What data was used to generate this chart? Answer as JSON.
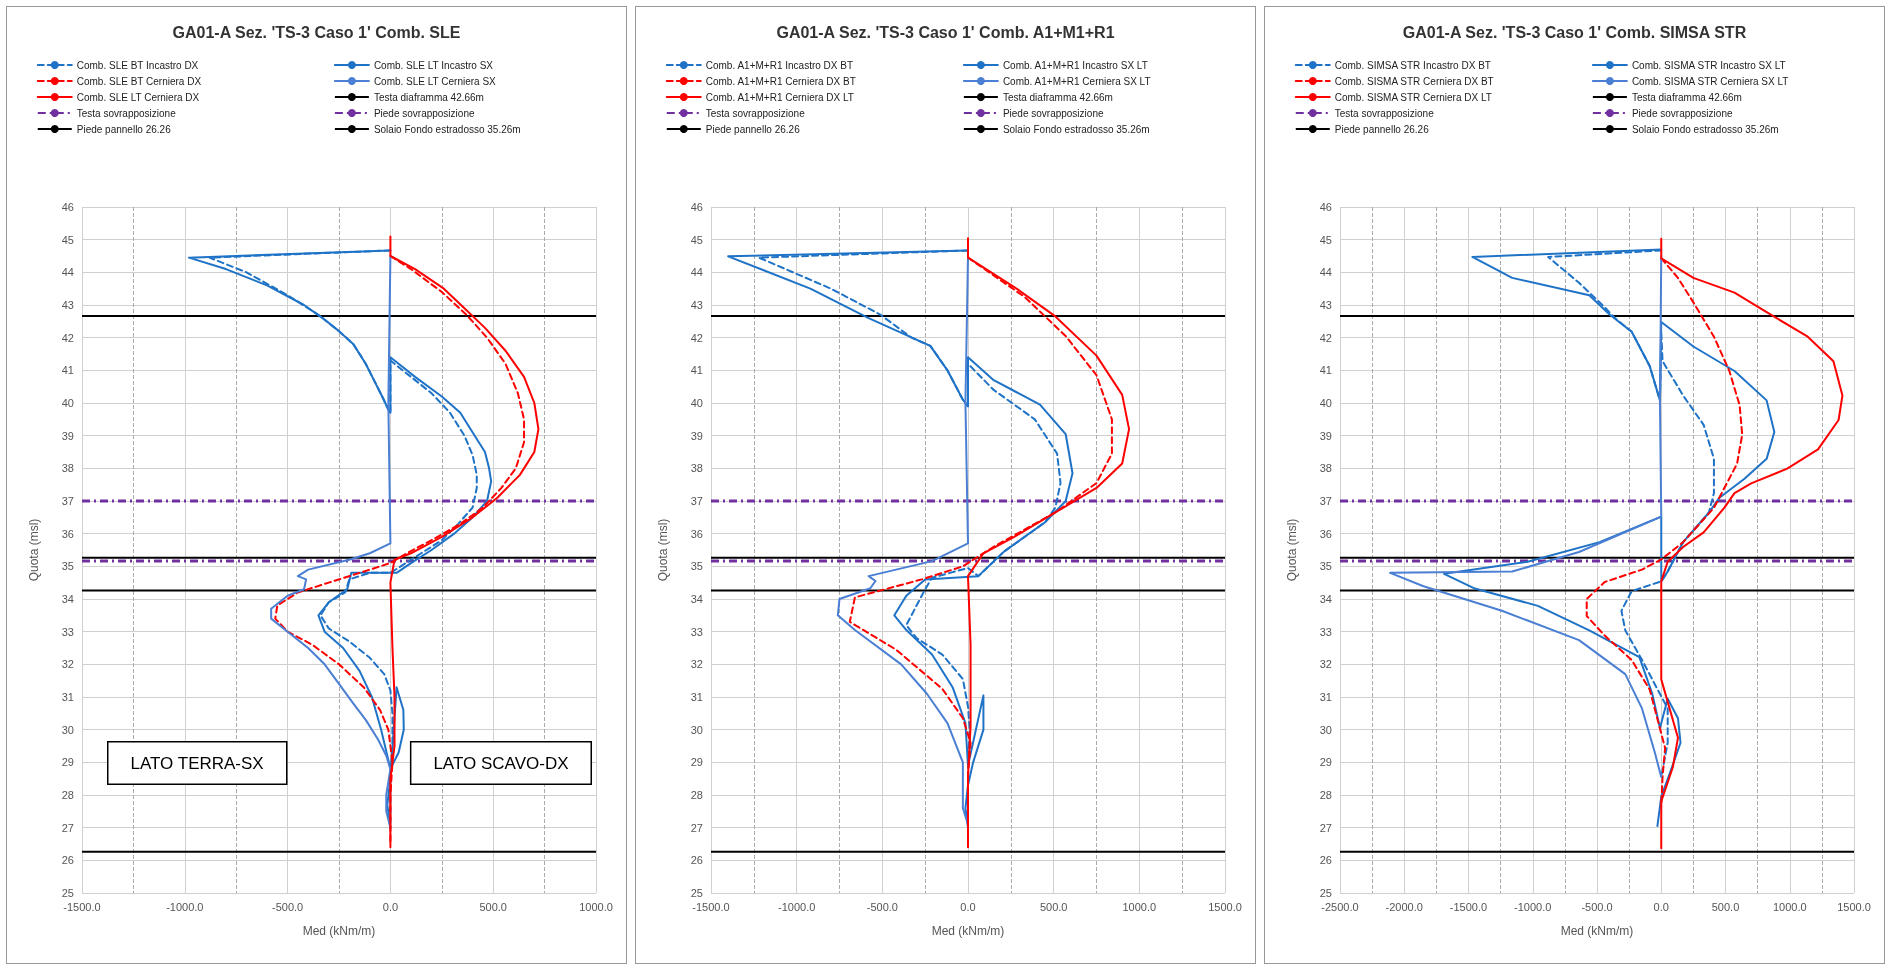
{
  "chart_data": [
    {
      "type": "line",
      "title": "GA01-A Sez. 'TS-3 Caso 1' Comb. SLE",
      "xlabel": "Med (kNm/m)",
      "ylabel": "Quota (msl)",
      "legend": "top",
      "grid": true,
      "marker": "none",
      "xlim": [
        -1500,
        1000
      ],
      "xticks": [
        {
          "value": -1500,
          "label": "-1500.0"
        },
        {
          "value": -1000,
          "label": "-1000.0"
        },
        {
          "value": -500,
          "label": "-500.0"
        },
        {
          "value": 0,
          "label": "0.0"
        },
        {
          "value": 500,
          "label": "500.0"
        },
        {
          "value": 1000,
          "label": "1000.0"
        }
      ],
      "ylim": [
        25,
        46
      ],
      "yticks": [
        25,
        26,
        27,
        28,
        29,
        30,
        31,
        32,
        33,
        34,
        35,
        36,
        37,
        38,
        39,
        40,
        41,
        42,
        43,
        44,
        45,
        46
      ],
      "series": [
        {
          "name": "Comb. SLE BT Incastro DX",
          "color": "#1f73c7",
          "line_style": "dashed",
          "x": [
            0,
            -880,
            -700,
            -500,
            -350,
            -250,
            -180,
            -120,
            -80,
            -40,
            -10,
            0,
            0,
            20,
            100,
            200,
            290,
            360,
            400,
            420,
            420,
            400,
            330,
            250,
            150,
            50,
            0,
            -100,
            -200,
            -220,
            -300,
            -340,
            -300,
            -200,
            -100,
            -30,
            0,
            10,
            10,
            0,
            0
          ],
          "values": [
            44.67,
            44.45,
            44.0,
            43.3,
            42.7,
            42.2,
            41.8,
            41.2,
            40.7,
            40.2,
            39.8,
            39.7,
            41.3,
            41.2,
            40.8,
            40.3,
            39.7,
            39.0,
            38.4,
            37.8,
            37.4,
            36.8,
            36.3,
            35.8,
            35.4,
            35.0,
            34.8,
            34.8,
            34.6,
            34.2,
            33.9,
            33.5,
            33.1,
            32.7,
            32.2,
            31.7,
            31.2,
            30.5,
            29.5,
            28.5,
            27.0
          ]
        },
        {
          "name": "Comb. SLE LT Incastro SX",
          "color": "#1f73c7",
          "line_style": "solid",
          "x": [
            0,
            -980,
            -800,
            -600,
            -420,
            -330,
            -250,
            -180,
            -120,
            -80,
            -40,
            -10,
            0,
            0,
            20,
            120,
            250,
            340,
            410,
            460,
            480,
            490,
            470,
            400,
            310,
            200,
            100,
            30,
            -190,
            -210,
            -300,
            -350,
            -320,
            -230,
            -150,
            -90,
            -45,
            -15,
            0,
            40,
            65,
            63,
            30,
            0,
            -15,
            0
          ],
          "values": [
            44.67,
            44.45,
            44.1,
            43.6,
            43.0,
            42.6,
            42.2,
            41.8,
            41.2,
            40.7,
            40.2,
            39.8,
            39.7,
            41.4,
            41.3,
            40.8,
            40.2,
            39.7,
            39.0,
            38.5,
            38.0,
            37.6,
            37.0,
            36.5,
            36.0,
            35.5,
            35.1,
            34.8,
            34.8,
            34.3,
            33.9,
            33.5,
            33.0,
            32.5,
            31.8,
            31.0,
            30.0,
            29.2,
            28.8,
            29.3,
            30.0,
            30.6,
            31.3,
            28.5,
            27.7,
            27.0
          ]
        },
        {
          "name": "Comb. SLE BT Cerniera DX",
          "color": "#ff0000",
          "line_style": "dashed",
          "x": [
            0,
            100,
            250,
            370,
            470,
            560,
            620,
            650,
            650,
            610,
            540,
            450,
            340,
            200,
            80,
            0,
            -150,
            -300,
            -450,
            -550,
            -560,
            -500,
            -380,
            -250,
            -130,
            -50,
            -10,
            10,
            0,
            0
          ],
          "values": [
            44.5,
            44.1,
            43.4,
            42.7,
            42.0,
            41.2,
            40.3,
            39.5,
            38.8,
            38.0,
            37.4,
            36.8,
            36.3,
            35.8,
            35.4,
            35.1,
            34.8,
            34.5,
            34.2,
            33.8,
            33.4,
            33.0,
            32.6,
            32.0,
            31.3,
            30.6,
            30.0,
            29.0,
            28.0,
            26.5
          ]
        },
        {
          "name": "Comb. SLE LT Cerniera SX",
          "color": "#4a7fd4",
          "line_style": "solid",
          "x": [
            0,
            -10,
            0,
            -100,
            -200,
            -400,
            -450,
            -410,
            -420,
            -500,
            -580,
            -580,
            -500,
            -400,
            -320,
            -250,
            -180,
            -120,
            -60,
            -20,
            0,
            -20,
            -20,
            0
          ],
          "values": [
            44.5,
            40.0,
            35.7,
            35.4,
            35.2,
            34.9,
            34.7,
            34.6,
            34.3,
            34.1,
            33.7,
            33.4,
            33.0,
            32.5,
            32.0,
            31.4,
            30.8,
            30.3,
            29.7,
            29.2,
            28.8,
            28.0,
            27.5,
            27.0
          ]
        },
        {
          "name": "Comb. SLE LT Cerniera DX",
          "color": "#ff0000",
          "line_style": "solid",
          "x": [
            0,
            0,
            120,
            260,
            360,
            460,
            560,
            650,
            700,
            720,
            700,
            630,
            520,
            400,
            250,
            100,
            20,
            0,
            10,
            20,
            20,
            0,
            0
          ],
          "values": [
            45.1,
            44.5,
            44.1,
            43.5,
            42.9,
            42.3,
            41.6,
            40.8,
            40.0,
            39.2,
            38.5,
            37.8,
            37.1,
            36.5,
            35.9,
            35.4,
            35.2,
            34.5,
            32.5,
            31.0,
            29.5,
            28.5,
            26.4
          ]
        }
      ],
      "ref_lines": [
        {
          "axis": "y",
          "value": 42.66,
          "label": "Testa diaframma 42.66m",
          "color": "#000000",
          "line_style": "solid"
        },
        {
          "axis": "y",
          "value": 37.0,
          "label": "Testa sovrapposizione",
          "color": "#7030a0",
          "line_style": "dashed"
        },
        {
          "axis": "y",
          "value": 35.16,
          "label": "Piede sovrapposizione",
          "color": "#7030a0",
          "line_style": "dashed"
        },
        {
          "axis": "y",
          "value": 26.26,
          "label": "Piede pannello 26.26",
          "color": "#000000",
          "line_style": "solid"
        },
        {
          "axis": "y",
          "value": 35.26,
          "label": "Solaio Fondo estradosso 35.26m",
          "color": "#000000",
          "line_style": "solid"
        },
        {
          "axis": "y",
          "value": 34.26,
          "color": "#000000",
          "line_style": "solid"
        }
      ],
      "annotations": [
        "LATO TERRA-SX",
        "LATO SCAVO-DX"
      ]
    },
    {
      "type": "line",
      "title": "GA01-A Sez. 'TS-3 Caso 1' Comb. A1+M1+R1",
      "xlabel": "Med (kNm/m)",
      "ylabel": "Quota (msl)",
      "legend": "top",
      "grid": true,
      "marker": "none",
      "xlim": [
        -1500,
        1500
      ],
      "xticks": [
        {
          "value": -1500,
          "label": "-1500.0"
        },
        {
          "value": -1000,
          "label": "-1000.0"
        },
        {
          "value": -500,
          "label": "-500.0"
        },
        {
          "value": 0,
          "label": "0.0"
        },
        {
          "value": 500,
          "label": "500.0"
        },
        {
          "value": 1000,
          "label": "1000.0"
        },
        {
          "value": 1500,
          "label": "1500.0"
        }
      ],
      "ylim": [
        25,
        46
      ],
      "yticks": [
        25,
        26,
        27,
        28,
        29,
        30,
        31,
        32,
        33,
        34,
        35,
        36,
        37,
        38,
        39,
        40,
        41,
        42,
        43,
        44,
        45,
        46
      ],
      "series": [
        {
          "name": "Comb. A1+M+R1 Incastro DX BT",
          "color": "#1f73c7",
          "line_style": "dashed",
          "x": [
            0,
            -1220,
            -800,
            -510,
            -330,
            -220,
            -120,
            -30,
            0,
            0,
            150,
            390,
            520,
            540,
            510,
            450,
            210,
            60,
            0,
            -210,
            -250,
            -360,
            -300,
            -150,
            -30,
            0,
            10,
            0,
            0
          ],
          "values": [
            44.67,
            44.45,
            43.5,
            42.7,
            42.0,
            41.75,
            41.0,
            40.1,
            39.9,
            41.2,
            40.4,
            39.5,
            38.45,
            37.55,
            36.8,
            36.35,
            35.45,
            34.7,
            34.95,
            34.65,
            34.3,
            33.2,
            32.8,
            32.3,
            31.55,
            30.7,
            30.0,
            28.8,
            27.0
          ]
        },
        {
          "name": "Comb. A1+M+R1 Incastro SX LT",
          "color": "#1f73c7",
          "line_style": "solid",
          "x": [
            0,
            -1400,
            -920,
            -580,
            -220,
            -120,
            -30,
            0,
            0,
            150,
            420,
            570,
            610,
            570,
            450,
            210,
            60,
            -250,
            -360,
            -430,
            -360,
            -210,
            -90,
            -15,
            0,
            90,
            90,
            30,
            0,
            -15,
            0
          ],
          "values": [
            44.67,
            44.49,
            43.5,
            42.6,
            41.75,
            41.0,
            40.1,
            39.9,
            41.4,
            40.7,
            39.95,
            39.05,
            37.85,
            37.0,
            36.35,
            35.45,
            34.7,
            34.6,
            34.1,
            33.5,
            33.05,
            32.3,
            31.3,
            30.2,
            28.9,
            31.05,
            30.0,
            29.0,
            28.3,
            27.6,
            27.0
          ]
        },
        {
          "name": "Comb. A1+M+R1 Cerniera DX BT",
          "color": "#ff0000",
          "line_style": "dashed",
          "x": [
            0,
            330,
            570,
            750,
            840,
            840,
            750,
            510,
            150,
            -30,
            -270,
            -660,
            -690,
            -420,
            -150,
            -30,
            15,
            0,
            0
          ],
          "values": [
            44.45,
            43.25,
            42.05,
            40.85,
            39.5,
            38.45,
            37.55,
            36.65,
            35.6,
            35.0,
            34.6,
            34.05,
            33.3,
            32.45,
            31.25,
            30.35,
            29.6,
            28.6,
            26.5
          ]
        },
        {
          "name": "Comb. A1+M+R1 Cerniera SX LT",
          "color": "#4a7fd4",
          "line_style": "solid",
          "x": [
            0,
            -15,
            0,
            -210,
            -580,
            -540,
            -570,
            -750,
            -760,
            -660,
            -390,
            -240,
            -120,
            -30,
            -30,
            -30,
            0
          ],
          "values": [
            44.5,
            40.0,
            35.7,
            35.16,
            34.7,
            34.55,
            34.33,
            34.0,
            33.5,
            33.05,
            32.0,
            31.1,
            30.2,
            29.0,
            28.3,
            27.6,
            27.1
          ]
        },
        {
          "name": "Comb. A1+M+R1 Cerniera DX LT",
          "color": "#ff0000",
          "line_style": "solid",
          "x": [
            0,
            0,
            270,
            510,
            750,
            900,
            940,
            900,
            750,
            510,
            270,
            90,
            0,
            15,
            15,
            0,
            0
          ],
          "values": [
            45.04,
            44.45,
            43.55,
            42.65,
            41.45,
            40.25,
            39.2,
            38.15,
            37.4,
            36.65,
            35.9,
            35.4,
            34.7,
            32.6,
            30.1,
            28.6,
            26.4
          ]
        }
      ],
      "ref_lines": [
        {
          "axis": "y",
          "value": 42.66,
          "label": "Testa diaframma 42.66m",
          "color": "#000000",
          "line_style": "solid"
        },
        {
          "axis": "y",
          "value": 37.0,
          "label": "Testa sovrapposizione",
          "color": "#7030a0",
          "line_style": "dashed"
        },
        {
          "axis": "y",
          "value": 35.16,
          "label": "Piede sovrapposizione",
          "color": "#7030a0",
          "line_style": "dashed"
        },
        {
          "axis": "y",
          "value": 26.26,
          "label": "Piede pannello 26.26",
          "color": "#000000",
          "line_style": "solid"
        },
        {
          "axis": "y",
          "value": 35.26,
          "label": "Solaio Fondo estradosso 35.26m",
          "color": "#000000",
          "line_style": "solid"
        },
        {
          "axis": "y",
          "value": 34.26,
          "color": "#000000",
          "line_style": "solid"
        }
      ]
    },
    {
      "type": "line",
      "title": "GA01-A Sez. 'TS-3 Caso 1' Comb. SIMSA STR",
      "xlabel": "Med (kNm/m)",
      "ylabel": "Quota (msl)",
      "legend": "top",
      "grid": true,
      "marker": "none",
      "xlim": [
        -2500,
        1500
      ],
      "xticks": [
        {
          "value": -2500,
          "label": "-2500.0"
        },
        {
          "value": -2000,
          "label": "-2000.0"
        },
        {
          "value": -1500,
          "label": "-1500.0"
        },
        {
          "value": -1000,
          "label": "-1000.0"
        },
        {
          "value": -500,
          "label": "-500.0"
        },
        {
          "value": 0,
          "label": "0.0"
        },
        {
          "value": 500,
          "label": "500.0"
        },
        {
          "value": 1000,
          "label": "1000.0"
        },
        {
          "value": 1500,
          "label": "1500.0"
        }
      ],
      "ylim": [
        25,
        46
      ],
      "yticks": [
        25,
        26,
        27,
        28,
        29,
        30,
        31,
        32,
        33,
        34,
        35,
        36,
        37,
        38,
        39,
        40,
        41,
        42,
        43,
        44,
        45,
        46
      ],
      "series": [
        {
          "name": "Comb. SIMSA STR Incastro DX BT",
          "color": "#1f73c7",
          "line_style": "dashed",
          "x": [
            0,
            -880,
            -640,
            -440,
            -360,
            -230,
            -90,
            -10,
            0,
            10,
            170,
            330,
            410,
            410,
            370,
            170,
            50,
            0,
            -230,
            -310,
            -280,
            -150,
            -50,
            50,
            50,
            0
          ],
          "values": [
            44.67,
            44.47,
            43.68,
            42.93,
            42.6,
            42.18,
            41.13,
            40.08,
            42.18,
            41.28,
            40.23,
            39.33,
            38.29,
            37.24,
            36.64,
            35.74,
            34.84,
            34.54,
            34.24,
            33.64,
            33.04,
            32.14,
            31.39,
            30.65,
            29.6,
            28.55
          ]
        },
        {
          "name": "Comb. SISMA STR Incastro SX LT",
          "color": "#1f73c7",
          "line_style": "solid",
          "x": [
            0,
            -1470,
            -1160,
            -560,
            -400,
            -230,
            -90,
            -10,
            0,
            250,
            570,
            820,
            880,
            820,
            650,
            450,
            370,
            170,
            50,
            0,
            0,
            -480,
            -1040,
            -1690,
            -1450,
            -960,
            -560,
            -170,
            -70,
            -10,
            50,
            130,
            150,
            70,
            0,
            -30
          ],
          "values": [
            44.7,
            44.47,
            43.83,
            43.3,
            42.7,
            42.18,
            41.13,
            40.08,
            42.48,
            41.73,
            40.98,
            40.08,
            39.11,
            38.29,
            37.69,
            37.09,
            36.64,
            35.74,
            34.84,
            34.54,
            36.52,
            35.74,
            35.14,
            34.77,
            34.32,
            33.79,
            33.04,
            32.22,
            31.1,
            30.05,
            30.95,
            30.35,
            29.6,
            28.7,
            27.95,
            27.05
          ]
        },
        {
          "name": "Comb. SISMA STR Cerniera DX BT",
          "color": "#ff0000",
          "line_style": "dashed",
          "x": [
            0,
            130,
            250,
            410,
            530,
            610,
            630,
            590,
            490,
            410,
            170,
            0,
            -150,
            -440,
            -580,
            -580,
            -440,
            -230,
            -90,
            -30,
            30,
            10,
            0
          ],
          "values": [
            44.43,
            43.83,
            43.08,
            42.03,
            40.98,
            39.93,
            39.03,
            38.14,
            37.39,
            36.79,
            35.74,
            35.21,
            34.9,
            34.52,
            34.0,
            33.48,
            32.88,
            32.13,
            31.23,
            30.33,
            29.44,
            28.55,
            27.65
          ]
        },
        {
          "name": "Comb. SISMA STR Cerniera SX LT",
          "color": "#4a7fd4",
          "line_style": "solid",
          "x": [
            0,
            -10,
            0,
            -640,
            -1160,
            -2110,
            -1850,
            -1240,
            -640,
            -280,
            -150,
            -50,
            0
          ],
          "values": [
            44.5,
            40.0,
            36.52,
            35.44,
            34.84,
            34.8,
            34.39,
            33.64,
            32.74,
            31.7,
            30.65,
            29.3,
            28.55
          ]
        },
        {
          "name": "Comb. SISMA STR Cerniera DX LT",
          "color": "#ff0000",
          "line_style": "solid",
          "x": [
            0,
            0,
            250,
            570,
            820,
            1140,
            1340,
            1410,
            1380,
            1220,
            980,
            700,
            570,
            490,
            330,
            170,
            50,
            0,
            0,
            130,
            90,
            0,
            0
          ],
          "values": [
            45.03,
            44.43,
            43.83,
            43.38,
            42.78,
            42.03,
            41.28,
            40.23,
            39.48,
            38.58,
            37.99,
            37.54,
            37.24,
            36.79,
            36.04,
            35.59,
            35.14,
            34.54,
            31.54,
            29.75,
            28.85,
            27.8,
            26.37
          ]
        }
      ],
      "ref_lines": [
        {
          "axis": "y",
          "value": 42.66,
          "label": "Testa diaframma 42.66m",
          "color": "#000000",
          "line_style": "solid"
        },
        {
          "axis": "y",
          "value": 37.0,
          "label": "Testa sovrapposizione",
          "color": "#7030a0",
          "line_style": "dashed"
        },
        {
          "axis": "y",
          "value": 35.16,
          "label": "Piede sovrapposizione",
          "color": "#7030a0",
          "line_style": "dashed"
        },
        {
          "axis": "y",
          "value": 26.26,
          "label": "Piede pannello 26.26",
          "color": "#000000",
          "line_style": "solid"
        },
        {
          "axis": "y",
          "value": 35.26,
          "label": "Solaio Fondo estradosso 35.26m",
          "color": "#000000",
          "line_style": "solid"
        },
        {
          "axis": "y",
          "value": 34.26,
          "color": "#000000",
          "line_style": "solid"
        }
      ]
    }
  ]
}
